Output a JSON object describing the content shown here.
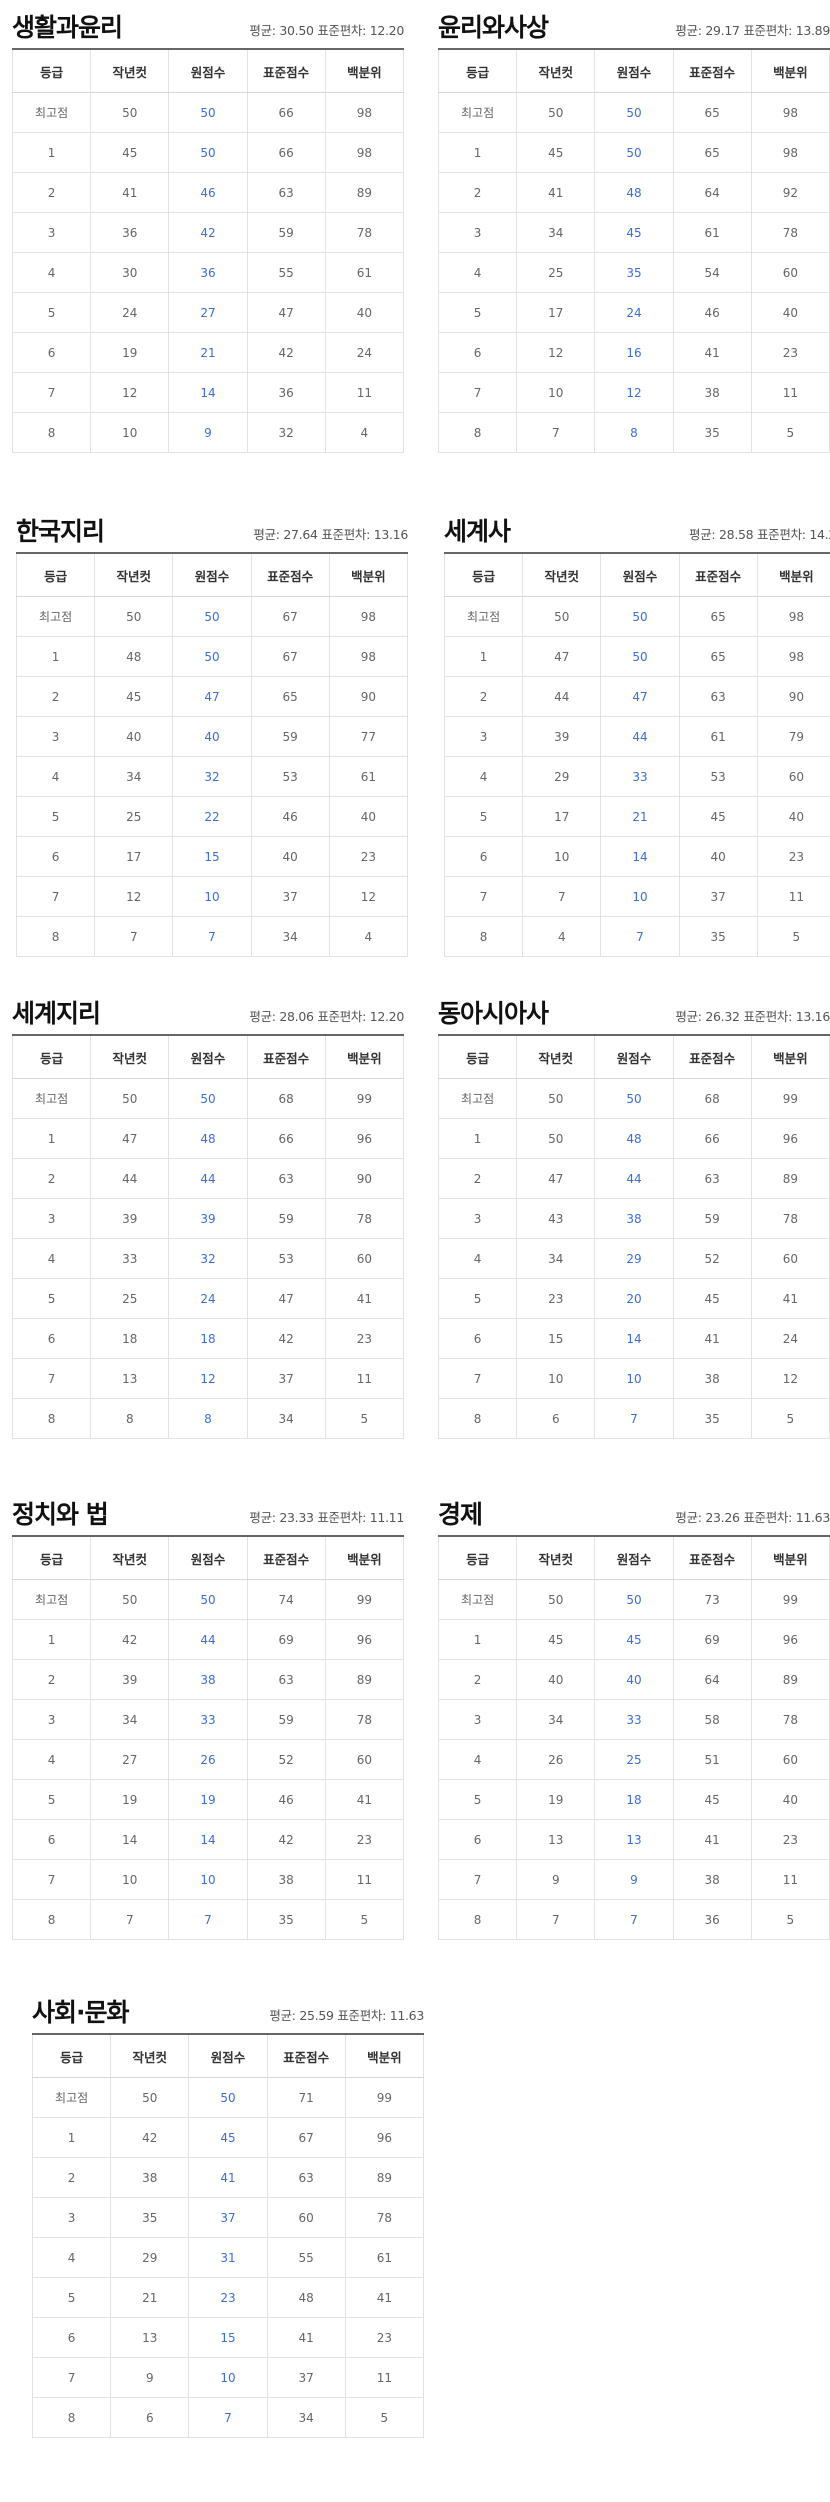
{
  "headers": [
    "등급",
    "작년컷",
    "원점수",
    "표준점수",
    "백분위"
  ],
  "panels": [
    {
      "title": "생활과윤리",
      "stat": "평균: 30.50 표준편차: 12.20",
      "rows": [
        [
          "최고점",
          "50",
          "50",
          "66",
          "98"
        ],
        [
          "1",
          "45",
          "50",
          "66",
          "98"
        ],
        [
          "2",
          "41",
          "46",
          "63",
          "89"
        ],
        [
          "3",
          "36",
          "42",
          "59",
          "78"
        ],
        [
          "4",
          "30",
          "36",
          "55",
          "61"
        ],
        [
          "5",
          "24",
          "27",
          "47",
          "40"
        ],
        [
          "6",
          "19",
          "21",
          "42",
          "24"
        ],
        [
          "7",
          "12",
          "14",
          "36",
          "11"
        ],
        [
          "8",
          "10",
          "9",
          "32",
          "4"
        ]
      ]
    },
    {
      "title": "윤리와사상",
      "stat": "평균: 29.17 표준편차: 13.89",
      "rows": [
        [
          "최고점",
          "50",
          "50",
          "65",
          "98"
        ],
        [
          "1",
          "45",
          "50",
          "65",
          "98"
        ],
        [
          "2",
          "41",
          "48",
          "64",
          "92"
        ],
        [
          "3",
          "34",
          "45",
          "61",
          "78"
        ],
        [
          "4",
          "25",
          "35",
          "54",
          "60"
        ],
        [
          "5",
          "17",
          "24",
          "46",
          "40"
        ],
        [
          "6",
          "12",
          "16",
          "41",
          "23"
        ],
        [
          "7",
          "10",
          "12",
          "38",
          "11"
        ],
        [
          "8",
          "7",
          "8",
          "35",
          "5"
        ]
      ]
    },
    {
      "title": "한국지리",
      "stat": "평균: 27.64 표준편차: 13.16",
      "rows": [
        [
          "최고점",
          "50",
          "50",
          "67",
          "98"
        ],
        [
          "1",
          "48",
          "50",
          "67",
          "98"
        ],
        [
          "2",
          "45",
          "47",
          "65",
          "90"
        ],
        [
          "3",
          "40",
          "40",
          "59",
          "77"
        ],
        [
          "4",
          "34",
          "32",
          "53",
          "61"
        ],
        [
          "5",
          "25",
          "22",
          "46",
          "40"
        ],
        [
          "6",
          "17",
          "15",
          "40",
          "23"
        ],
        [
          "7",
          "12",
          "10",
          "37",
          "12"
        ],
        [
          "8",
          "7",
          "7",
          "34",
          "4"
        ]
      ]
    },
    {
      "title": "세계사",
      "stat": "평균: 28.58 표준편차: 14.2",
      "rows": [
        [
          "최고점",
          "50",
          "50",
          "65",
          "98"
        ],
        [
          "1",
          "47",
          "50",
          "65",
          "98"
        ],
        [
          "2",
          "44",
          "47",
          "63",
          "90"
        ],
        [
          "3",
          "39",
          "44",
          "61",
          "79"
        ],
        [
          "4",
          "29",
          "33",
          "53",
          "60"
        ],
        [
          "5",
          "17",
          "21",
          "45",
          "40"
        ],
        [
          "6",
          "10",
          "14",
          "40",
          "23"
        ],
        [
          "7",
          "7",
          "10",
          "37",
          "11"
        ],
        [
          "8",
          "4",
          "7",
          "35",
          "5"
        ]
      ]
    },
    {
      "title": "세계지리",
      "stat": "평균: 28.06 표준편차: 12.20",
      "rows": [
        [
          "최고점",
          "50",
          "50",
          "68",
          "99"
        ],
        [
          "1",
          "47",
          "48",
          "66",
          "96"
        ],
        [
          "2",
          "44",
          "44",
          "63",
          "90"
        ],
        [
          "3",
          "39",
          "39",
          "59",
          "78"
        ],
        [
          "4",
          "33",
          "32",
          "53",
          "60"
        ],
        [
          "5",
          "25",
          "24",
          "47",
          "41"
        ],
        [
          "6",
          "18",
          "18",
          "42",
          "23"
        ],
        [
          "7",
          "13",
          "12",
          "37",
          "11"
        ],
        [
          "8",
          "8",
          "8",
          "34",
          "5"
        ]
      ]
    },
    {
      "title": "동아시아사",
      "stat": "평균: 26.32 표준편차: 13.16",
      "rows": [
        [
          "최고점",
          "50",
          "50",
          "68",
          "99"
        ],
        [
          "1",
          "50",
          "48",
          "66",
          "96"
        ],
        [
          "2",
          "47",
          "44",
          "63",
          "89"
        ],
        [
          "3",
          "43",
          "38",
          "59",
          "78"
        ],
        [
          "4",
          "34",
          "29",
          "52",
          "60"
        ],
        [
          "5",
          "23",
          "20",
          "45",
          "41"
        ],
        [
          "6",
          "15",
          "14",
          "41",
          "24"
        ],
        [
          "7",
          "10",
          "10",
          "38",
          "12"
        ],
        [
          "8",
          "6",
          "7",
          "35",
          "5"
        ]
      ]
    },
    {
      "title": "정치와 법",
      "stat": "평균: 23.33 표준편차: 11.11",
      "rows": [
        [
          "최고점",
          "50",
          "50",
          "74",
          "99"
        ],
        [
          "1",
          "42",
          "44",
          "69",
          "96"
        ],
        [
          "2",
          "39",
          "38",
          "63",
          "89"
        ],
        [
          "3",
          "34",
          "33",
          "59",
          "78"
        ],
        [
          "4",
          "27",
          "26",
          "52",
          "60"
        ],
        [
          "5",
          "19",
          "19",
          "46",
          "41"
        ],
        [
          "6",
          "14",
          "14",
          "42",
          "23"
        ],
        [
          "7",
          "10",
          "10",
          "38",
          "11"
        ],
        [
          "8",
          "7",
          "7",
          "35",
          "5"
        ]
      ]
    },
    {
      "title": "경제",
      "stat": "평균: 23.26 표준편차: 11.63",
      "rows": [
        [
          "최고점",
          "50",
          "50",
          "73",
          "99"
        ],
        [
          "1",
          "45",
          "45",
          "69",
          "96"
        ],
        [
          "2",
          "40",
          "40",
          "64",
          "89"
        ],
        [
          "3",
          "34",
          "33",
          "58",
          "78"
        ],
        [
          "4",
          "26",
          "25",
          "51",
          "60"
        ],
        [
          "5",
          "19",
          "18",
          "45",
          "40"
        ],
        [
          "6",
          "13",
          "13",
          "41",
          "23"
        ],
        [
          "7",
          "9",
          "9",
          "38",
          "11"
        ],
        [
          "8",
          "7",
          "7",
          "36",
          "5"
        ]
      ]
    },
    {
      "title": "사회·문화",
      "stat": "평균: 25.59 표준편차: 11.63",
      "rows": [
        [
          "최고점",
          "50",
          "50",
          "71",
          "99"
        ],
        [
          "1",
          "42",
          "45",
          "67",
          "96"
        ],
        [
          "2",
          "38",
          "41",
          "63",
          "89"
        ],
        [
          "3",
          "35",
          "37",
          "60",
          "78"
        ],
        [
          "4",
          "29",
          "31",
          "55",
          "61"
        ],
        [
          "5",
          "21",
          "23",
          "48",
          "41"
        ],
        [
          "6",
          "13",
          "15",
          "41",
          "23"
        ],
        [
          "7",
          "9",
          "10",
          "37",
          "11"
        ],
        [
          "8",
          "6",
          "7",
          "34",
          "5"
        ]
      ]
    }
  ]
}
